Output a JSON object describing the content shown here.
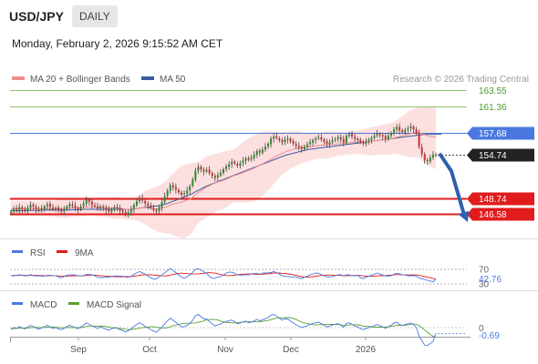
{
  "header": {
    "symbol": "USD/JPY",
    "period": "DAILY"
  },
  "datetime": "Monday, February 2, 2026 9:15:52 AM CET",
  "legend": {
    "ma20_bb": "MA 20 + Bollinger Bands",
    "ma50": "MA 50",
    "research": "Research © 2026 Trading Central",
    "rsi": "RSI",
    "rsi_ma": "9MA",
    "macd": "MACD",
    "macd_signal": "MACD Signal"
  },
  "colors": {
    "candle_up": "#2e8b2e",
    "candle_down": "#c83232",
    "bands": "#f9c6c6",
    "ma20": "#f28d8d",
    "ma50": "#3a5ba0",
    "resistance": "#8cc66c",
    "pivot": "#4a78e0",
    "support": "#e01c1c",
    "arrow": "#2f5fae",
    "rsi": "#4a78e0",
    "rsi_ma": "#e01c1c",
    "macd": "#4a78e0",
    "macd_signal": "#5aa02c"
  },
  "chart_data": [
    {
      "type": "candlestick",
      "title": "USD/JPY",
      "timeframe": "DAILY",
      "x_ticks": [
        "Sep",
        "Oct",
        "Nov",
        "Dec",
        "2026"
      ],
      "ylim": [
        145.0,
        165.0
      ],
      "last_price": "154.74",
      "levels": [
        {
          "value": "163.55",
          "kind": "resistance"
        },
        {
          "value": "161.36",
          "kind": "resistance"
        },
        {
          "value": "157.68",
          "kind": "pivot"
        },
        {
          "value": "148.74",
          "kind": "support"
        },
        {
          "value": "146.58",
          "kind": "support"
        }
      ],
      "forecast": "down toward 146.58",
      "close": [
        146.9,
        147.3,
        147.1,
        147.5,
        147.2,
        147.0,
        147.4,
        147.8,
        147.6,
        147.2,
        147.0,
        147.3,
        147.6,
        147.9,
        147.5,
        147.2,
        147.4,
        147.1,
        146.9,
        147.2,
        147.6,
        147.9,
        147.7,
        147.4,
        147.2,
        147.6,
        148.0,
        148.5,
        148.2,
        147.8,
        147.6,
        147.3,
        147.6,
        147.4,
        147.1,
        146.9,
        147.2,
        147.5,
        147.4,
        147.0,
        146.8,
        146.5,
        146.8,
        147.2,
        147.8,
        148.3,
        148.7,
        148.4,
        148.0,
        147.7,
        147.4,
        147.1,
        146.9,
        147.5,
        148.2,
        149.0,
        149.8,
        150.5,
        150.2,
        149.9,
        149.5,
        149.2,
        149.4,
        149.8,
        150.4,
        151.3,
        152.5,
        153.0,
        152.7,
        152.4,
        152.6,
        152.2,
        151.8,
        151.5,
        151.9,
        152.2,
        152.7,
        153.1,
        153.4,
        153.7,
        153.5,
        153.2,
        153.5,
        153.9,
        154.2,
        154.0,
        154.3,
        154.7,
        155.2,
        155.0,
        155.4,
        155.8,
        156.2,
        156.9,
        157.2,
        157.0,
        156.7,
        156.4,
        156.8,
        156.9,
        156.5,
        156.2,
        155.9,
        155.7,
        155.5,
        155.8,
        156.1,
        156.4,
        156.7,
        156.9,
        157.1,
        156.8,
        156.5,
        156.2,
        156.4,
        156.7,
        156.9,
        157.1,
        156.8,
        156.4,
        157.3,
        157.5,
        157.2,
        156.9,
        156.7,
        156.4,
        156.2,
        156.5,
        156.8,
        157.0,
        157.3,
        157.6,
        157.4,
        157.2,
        156.9,
        157.3,
        157.7,
        158.2,
        158.5,
        158.0,
        157.8,
        158.1,
        158.3,
        158.6,
        158.2,
        157.7,
        155.8,
        154.8,
        153.9,
        153.8,
        154.3,
        154.7,
        154.74
      ],
      "ma20": [
        147.3,
        147.3,
        147.3,
        147.3,
        147.3,
        147.3,
        147.3,
        147.3,
        147.3,
        147.3,
        147.3,
        147.3,
        147.3,
        147.3,
        147.3,
        147.3,
        147.3,
        147.3,
        147.3,
        147.3,
        147.3,
        147.35,
        147.4,
        147.4,
        147.4,
        147.4,
        147.45,
        147.5,
        147.55,
        147.55,
        147.55,
        147.5,
        147.5,
        147.5,
        147.45,
        147.4,
        147.4,
        147.4,
        147.4,
        147.35,
        147.3,
        147.2,
        147.2,
        147.2,
        147.25,
        147.3,
        147.35,
        147.4,
        147.4,
        147.4,
        147.35,
        147.3,
        147.25,
        147.3,
        147.35,
        147.45,
        147.6,
        147.8,
        147.9,
        148.0,
        148.1,
        148.2,
        148.3,
        148.45,
        148.6,
        148.85,
        149.2,
        149.5,
        149.75,
        150.0,
        150.25,
        150.45,
        150.65,
        150.8,
        150.95,
        151.05,
        151.2,
        151.35,
        151.5,
        151.7,
        151.85,
        151.95,
        152.1,
        152.25,
        152.4,
        152.55,
        152.7,
        152.85,
        153.05,
        153.25,
        153.45,
        153.65,
        153.85,
        154.05,
        154.3,
        154.5,
        154.7,
        154.9,
        155.05,
        155.2,
        155.35,
        155.45,
        155.55,
        155.6,
        155.65,
        155.7,
        155.75,
        155.8,
        155.85,
        155.9,
        155.95,
        156.0,
        156.0,
        156.05,
        156.1,
        156.1,
        156.15,
        156.2,
        156.2,
        156.25,
        156.3,
        156.35,
        156.35,
        156.4,
        156.4,
        156.45,
        156.45,
        156.5,
        156.5,
        156.55,
        156.6,
        156.65,
        156.7,
        156.75,
        156.8,
        156.85,
        156.9,
        157.0,
        157.1,
        157.2,
        157.3,
        157.4,
        157.5,
        157.6,
        157.7,
        157.75,
        157.7,
        157.6,
        157.45,
        157.3,
        157.2,
        157.15,
        157.1
      ],
      "ma50": [
        147.0,
        147.0,
        147.0,
        147.0,
        147.0,
        147.0,
        147.0,
        147.05,
        147.05,
        147.05,
        147.05,
        147.1,
        147.1,
        147.1,
        147.1,
        147.1,
        147.1,
        147.1,
        147.1,
        147.1,
        147.1,
        147.1,
        147.15,
        147.15,
        147.15,
        147.15,
        147.2,
        147.2,
        147.2,
        147.2,
        147.2,
        147.2,
        147.2,
        147.2,
        147.2,
        147.2,
        147.2,
        147.2,
        147.2,
        147.2,
        147.2,
        147.2,
        147.2,
        147.2,
        147.25,
        147.3,
        147.35,
        147.4,
        147.45,
        147.5,
        147.55,
        147.6,
        147.65,
        147.7,
        147.8,
        147.9,
        148.0,
        148.15,
        148.3,
        148.45,
        148.6,
        148.75,
        148.9,
        149.05,
        149.2,
        149.4,
        149.6,
        149.8,
        150.0,
        150.2,
        150.4,
        150.55,
        150.7,
        150.85,
        151.0,
        151.15,
        151.3,
        151.45,
        151.6,
        151.75,
        151.9,
        152.05,
        152.2,
        152.35,
        152.5,
        152.65,
        152.8,
        152.95,
        153.1,
        153.25,
        153.4,
        153.55,
        153.7,
        153.85,
        154.0,
        154.15,
        154.3,
        154.45,
        154.6,
        154.7,
        154.8,
        154.9,
        155.0,
        155.1,
        155.2,
        155.3,
        155.4,
        155.45,
        155.5,
        155.55,
        155.6,
        155.65,
        155.7,
        155.75,
        155.8,
        155.85,
        155.9,
        155.95,
        156.0,
        156.05,
        156.1,
        156.15,
        156.2,
        156.25,
        156.3,
        156.35,
        156.4,
        156.45,
        156.5,
        156.55,
        156.6,
        156.65,
        156.7,
        156.75,
        156.8,
        156.85,
        156.9,
        156.95,
        157.0,
        157.05,
        157.1,
        157.15,
        157.2,
        157.25,
        157.3,
        157.35,
        157.4,
        157.45,
        157.5,
        157.5,
        157.5,
        157.5,
        157.5,
        157.5,
        157.5
      ]
    },
    {
      "type": "line",
      "title": "RSI",
      "series_names": [
        "RSI",
        "9MA"
      ],
      "levels": [
        "70",
        "30"
      ],
      "last_value": "42.76",
      "ylim": [
        0,
        100
      ]
    },
    {
      "type": "line",
      "title": "MACD",
      "series_names": [
        "MACD",
        "MACD Signal"
      ],
      "zero_label": "0",
      "last_value": "-0.69",
      "x_ticks": [
        "Sep",
        "Oct",
        "Nov",
        "Dec",
        "2026"
      ]
    }
  ]
}
